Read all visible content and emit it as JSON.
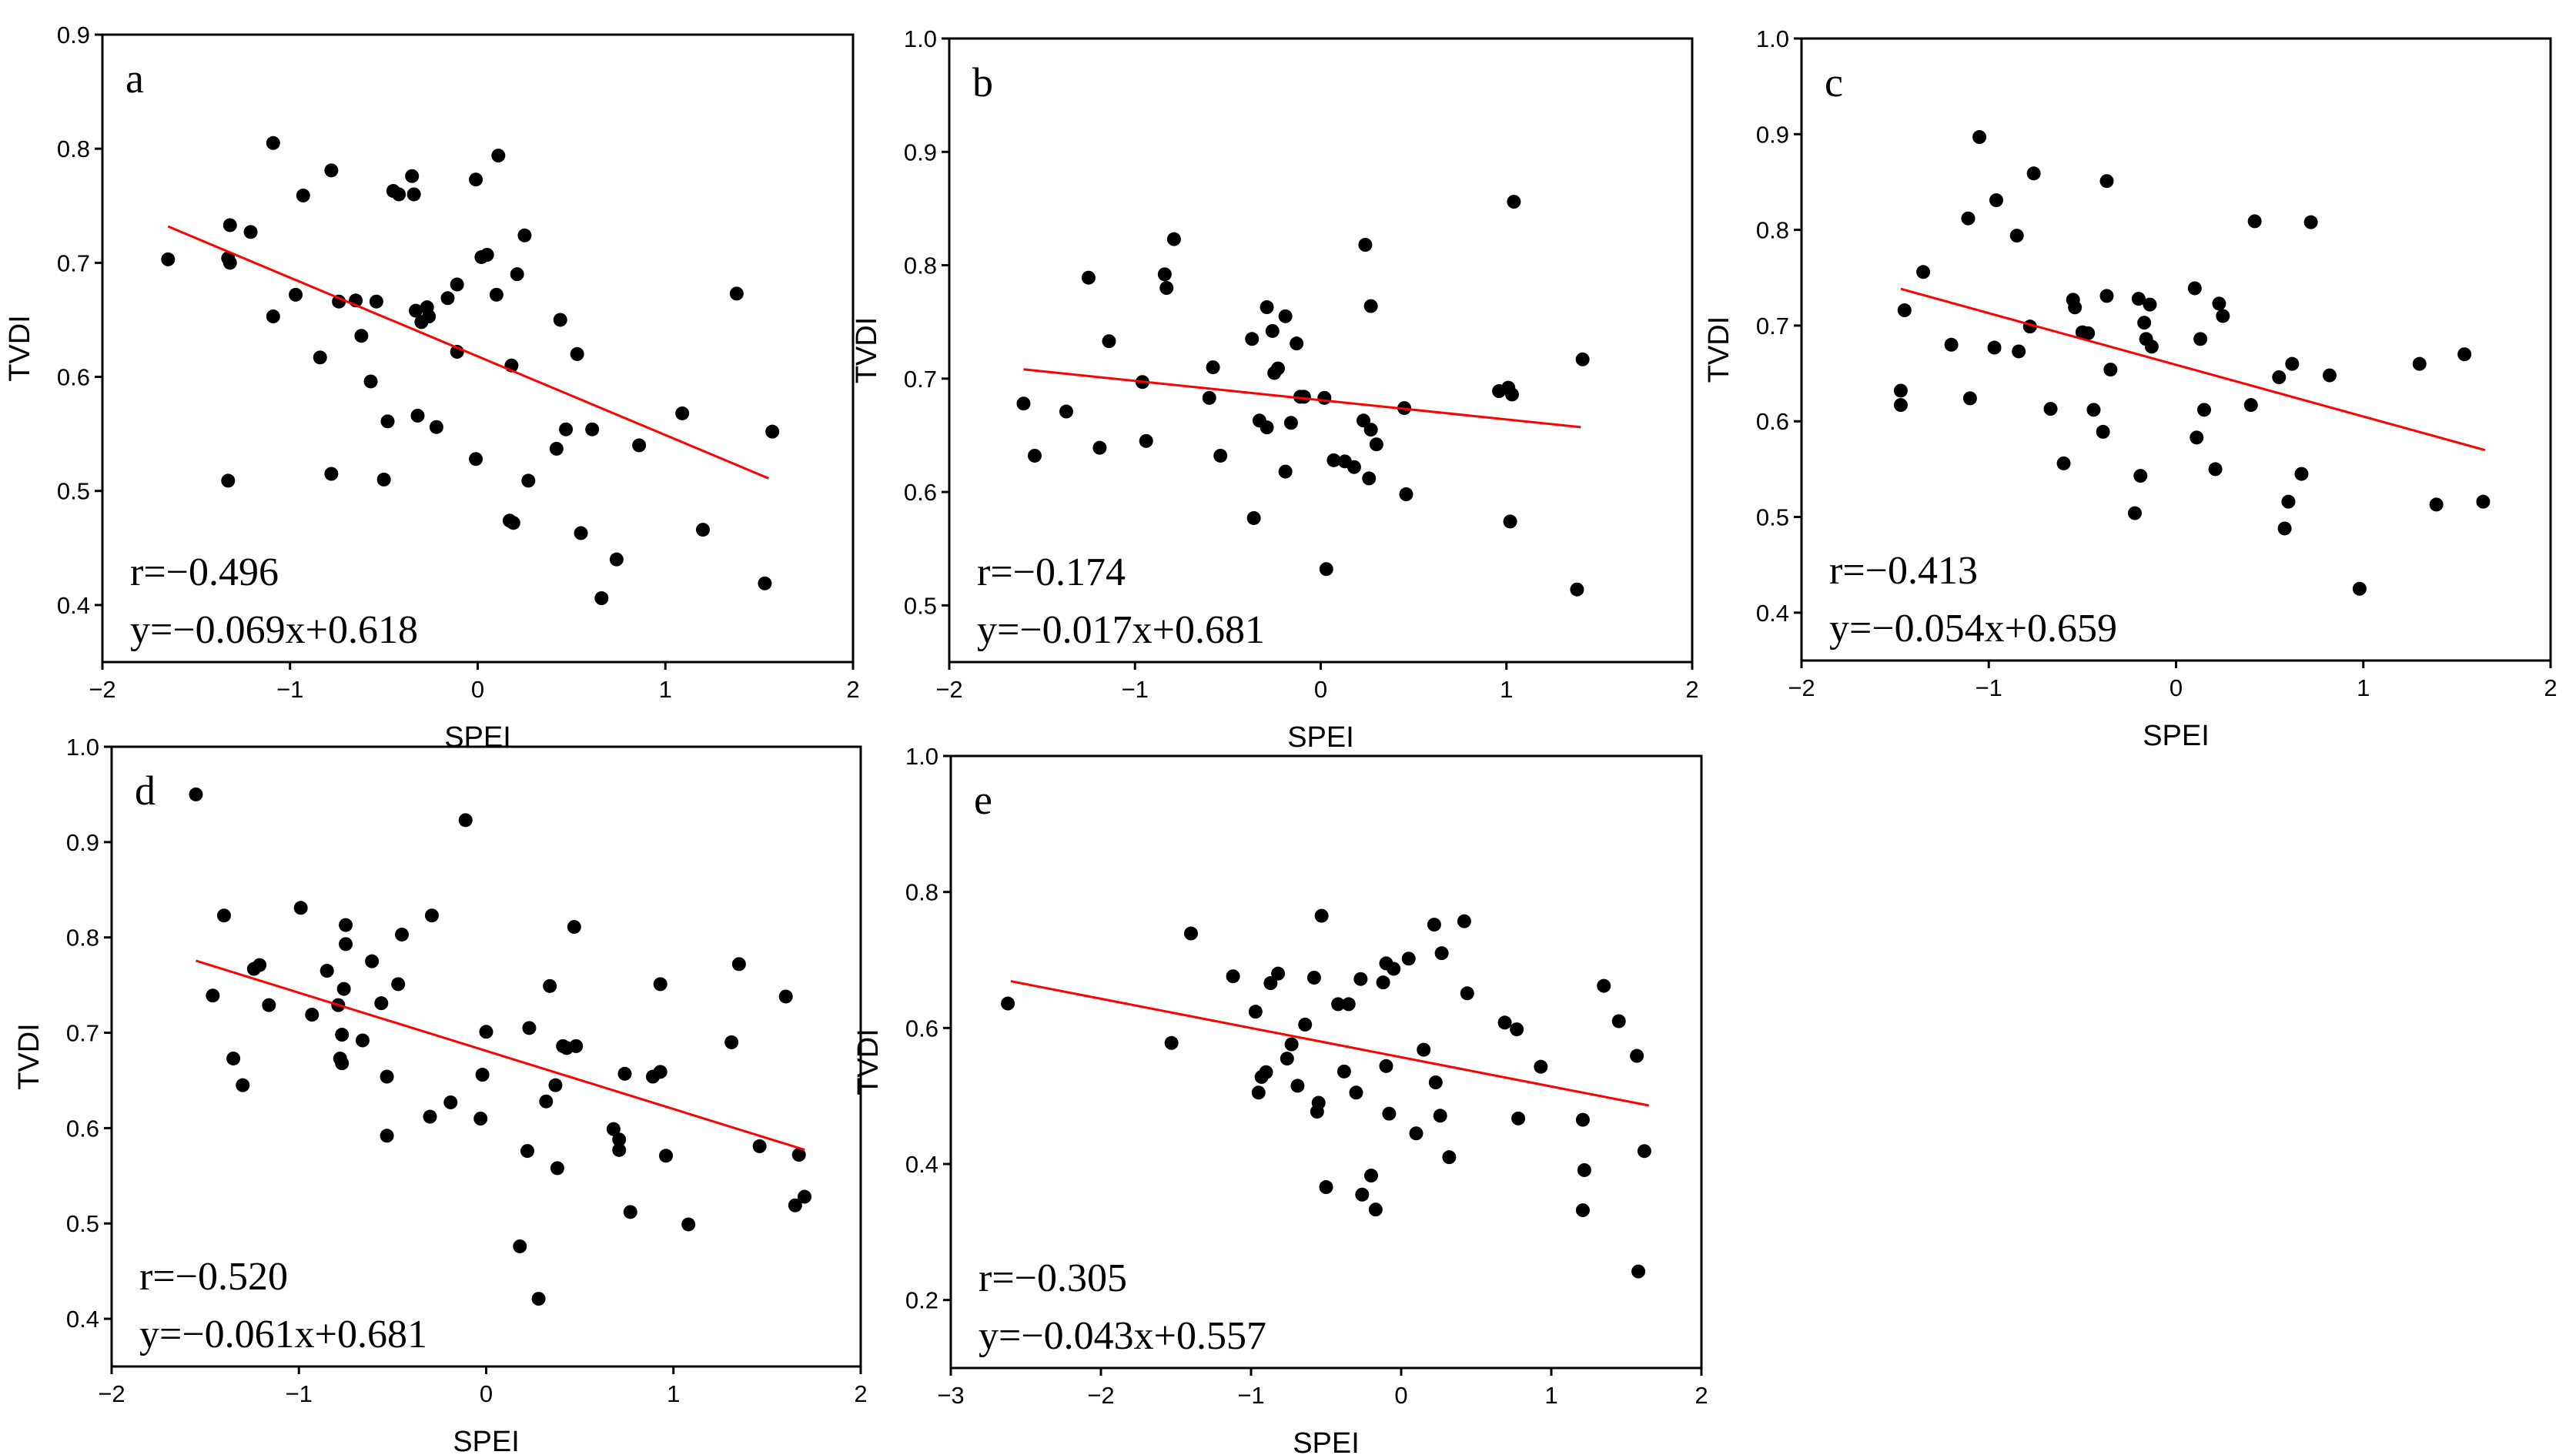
{
  "chart_data": [
    {
      "type": "scatter",
      "panel": "a",
      "xlabel": "SPEI",
      "ylabel": "TVDI",
      "xlim": [
        -2,
        2
      ],
      "ylim": [
        0.35,
        0.9
      ],
      "xticks": [
        -2,
        -1,
        0,
        1,
        2
      ],
      "xtick_labels": [
        "−2",
        "−1",
        "0",
        "1",
        "2"
      ],
      "yticks": [
        0.4,
        0.5,
        0.6,
        0.7,
        0.8,
        0.9
      ],
      "ytick_labels": [
        "0.4",
        "0.5",
        "0.6",
        "0.7",
        "0.8",
        "0.9"
      ],
      "r_text": "r=−0.496",
      "eq_text": "y=−0.069x+0.618",
      "fit": {
        "slope": -0.069,
        "intercept": 0.618,
        "x_range": [
          -1.65,
          1.55
        ]
      },
      "line_color": "#ff0000",
      "marker_color": "#000000",
      "points": [
        [
          -1.65,
          0.703
        ],
        [
          -1.32,
          0.733
        ],
        [
          -1.33,
          0.704
        ],
        [
          -1.32,
          0.7
        ],
        [
          -1.21,
          0.727
        ],
        [
          -1.09,
          0.805
        ],
        [
          -1.09,
          0.653
        ],
        [
          -0.97,
          0.672
        ],
        [
          -0.93,
          0.759
        ],
        [
          -0.84,
          0.617
        ],
        [
          -0.78,
          0.781
        ],
        [
          -0.78,
          0.515
        ],
        [
          -0.74,
          0.666
        ],
        [
          -0.65,
          0.667
        ],
        [
          -0.62,
          0.636
        ],
        [
          -0.57,
          0.596
        ],
        [
          -0.54,
          0.666
        ],
        [
          -0.5,
          0.51
        ],
        [
          -0.48,
          0.561
        ],
        [
          -0.45,
          0.763
        ],
        [
          -0.42,
          0.76
        ],
        [
          -0.35,
          0.776
        ],
        [
          -0.34,
          0.76
        ],
        [
          -0.33,
          0.658
        ],
        [
          -0.32,
          0.566
        ],
        [
          -0.3,
          0.648
        ],
        [
          -0.27,
          0.661
        ],
        [
          -0.26,
          0.653
        ],
        [
          -0.22,
          0.556
        ],
        [
          -0.16,
          0.669
        ],
        [
          -0.11,
          0.681
        ],
        [
          -0.11,
          0.622
        ],
        [
          -0.01,
          0.773
        ],
        [
          -0.01,
          0.528
        ],
        [
          0.02,
          0.705
        ],
        [
          0.05,
          0.707
        ],
        [
          0.1,
          0.672
        ],
        [
          0.11,
          0.794
        ],
        [
          0.17,
          0.474
        ],
        [
          0.18,
          0.61
        ],
        [
          0.19,
          0.472
        ],
        [
          0.21,
          0.69
        ],
        [
          0.25,
          0.724
        ],
        [
          0.27,
          0.509
        ],
        [
          0.42,
          0.537
        ],
        [
          0.44,
          0.65
        ],
        [
          0.47,
          0.554
        ],
        [
          0.53,
          0.62
        ],
        [
          0.55,
          0.463
        ],
        [
          0.61,
          0.554
        ],
        [
          0.66,
          0.406
        ],
        [
          0.74,
          0.44
        ],
        [
          0.86,
          0.54
        ],
        [
          1.09,
          0.568
        ],
        [
          1.2,
          0.466
        ],
        [
          1.38,
          0.673
        ],
        [
          1.53,
          0.419
        ],
        [
          1.57,
          0.552
        ],
        [
          -1.33,
          0.509
        ]
      ]
    },
    {
      "type": "scatter",
      "panel": "b",
      "xlabel": "SPEI",
      "ylabel": "TVDI",
      "xlim": [
        -2,
        2
      ],
      "ylim": [
        0.45,
        1.0
      ],
      "xticks": [
        -2,
        -1,
        0,
        1,
        2
      ],
      "xtick_labels": [
        "−2",
        "−1",
        "0",
        "1",
        "2"
      ],
      "yticks": [
        0.5,
        0.6,
        0.7,
        0.8,
        0.9,
        1.0
      ],
      "ytick_labels": [
        "0.5",
        "0.6",
        "0.7",
        "0.8",
        "0.9",
        "1.0"
      ],
      "r_text": "r=−0.174",
      "eq_text": "y=−0.017x+0.681",
      "fit": {
        "slope": -0.017,
        "intercept": 0.681,
        "x_range": [
          -1.6,
          1.4
        ]
      },
      "line_color": "#ff0000",
      "marker_color": "#000000",
      "points": [
        [
          -1.6,
          0.678
        ],
        [
          -1.54,
          0.632
        ],
        [
          -1.37,
          0.671
        ],
        [
          -1.25,
          0.789
        ],
        [
          -1.19,
          0.639
        ],
        [
          -1.14,
          0.733
        ],
        [
          -0.96,
          0.697
        ],
        [
          -0.94,
          0.645
        ],
        [
          -0.84,
          0.792
        ],
        [
          -0.83,
          0.78
        ],
        [
          -0.79,
          0.823
        ],
        [
          -0.6,
          0.683
        ],
        [
          -0.58,
          0.71
        ],
        [
          -0.54,
          0.632
        ],
        [
          -0.37,
          0.735
        ],
        [
          -0.36,
          0.577
        ],
        [
          -0.33,
          0.663
        ],
        [
          -0.29,
          0.763
        ],
        [
          -0.29,
          0.657
        ],
        [
          -0.26,
          0.742
        ],
        [
          -0.25,
          0.705
        ],
        [
          -0.23,
          0.709
        ],
        [
          -0.19,
          0.755
        ],
        [
          -0.19,
          0.618
        ],
        [
          -0.16,
          0.661
        ],
        [
          -0.13,
          0.731
        ],
        [
          -0.11,
          0.684
        ],
        [
          -0.09,
          0.684
        ],
        [
          0.02,
          0.683
        ],
        [
          0.03,
          0.532
        ],
        [
          0.07,
          0.628
        ],
        [
          0.13,
          0.627
        ],
        [
          0.18,
          0.622
        ],
        [
          0.23,
          0.663
        ],
        [
          0.24,
          0.818
        ],
        [
          0.26,
          0.612
        ],
        [
          0.27,
          0.655
        ],
        [
          0.27,
          0.764
        ],
        [
          0.3,
          0.642
        ],
        [
          0.45,
          0.674
        ],
        [
          0.46,
          0.598
        ],
        [
          0.96,
          0.689
        ],
        [
          1.01,
          0.692
        ],
        [
          1.02,
          0.574
        ],
        [
          1.03,
          0.686
        ],
        [
          1.04,
          0.856
        ],
        [
          1.38,
          0.514
        ],
        [
          1.41,
          0.717
        ]
      ]
    },
    {
      "type": "scatter",
      "panel": "c",
      "xlabel": "SPEI",
      "ylabel": "TVDI",
      "xlim": [
        -2,
        2
      ],
      "ylim": [
        0.35,
        1.0
      ],
      "xticks": [
        -2,
        -1,
        0,
        1,
        2
      ],
      "xtick_labels": [
        "−2",
        "−1",
        "0",
        "1",
        "2"
      ],
      "yticks": [
        0.4,
        0.5,
        0.6,
        0.7,
        0.8,
        0.9,
        1.0
      ],
      "ytick_labels": [
        "0.4",
        "0.5",
        "0.6",
        "0.7",
        "0.8",
        "0.9",
        "1.0"
      ],
      "r_text": "r=−0.413",
      "eq_text": "y=−0.054x+0.659",
      "fit": {
        "slope": -0.054,
        "intercept": 0.659,
        "x_range": [
          -1.47,
          1.65
        ]
      },
      "line_color": "#ff0000",
      "marker_color": "#000000",
      "points": [
        [
          -1.47,
          0.632
        ],
        [
          -1.47,
          0.617
        ],
        [
          -1.45,
          0.716
        ],
        [
          -1.35,
          0.756
        ],
        [
          -1.2,
          0.68
        ],
        [
          -1.11,
          0.812
        ],
        [
          -1.1,
          0.624
        ],
        [
          -1.05,
          0.897
        ],
        [
          -0.97,
          0.677
        ],
        [
          -0.96,
          0.831
        ],
        [
          -0.85,
          0.794
        ],
        [
          -0.84,
          0.673
        ],
        [
          -0.78,
          0.699
        ],
        [
          -0.76,
          0.859
        ],
        [
          -0.67,
          0.613
        ],
        [
          -0.6,
          0.556
        ],
        [
          -0.55,
          0.727
        ],
        [
          -0.54,
          0.719
        ],
        [
          -0.5,
          0.693
        ],
        [
          -0.47,
          0.692
        ],
        [
          -0.44,
          0.612
        ],
        [
          -0.39,
          0.589
        ],
        [
          -0.37,
          0.731
        ],
        [
          -0.37,
          0.851
        ],
        [
          -0.35,
          0.654
        ],
        [
          -0.22,
          0.504
        ],
        [
          -0.2,
          0.728
        ],
        [
          -0.19,
          0.543
        ],
        [
          -0.17,
          0.703
        ],
        [
          -0.16,
          0.686
        ],
        [
          -0.14,
          0.722
        ],
        [
          -0.13,
          0.678
        ],
        [
          0.1,
          0.739
        ],
        [
          0.11,
          0.583
        ],
        [
          0.13,
          0.686
        ],
        [
          0.15,
          0.612
        ],
        [
          0.21,
          0.55
        ],
        [
          0.23,
          0.723
        ],
        [
          0.25,
          0.71
        ],
        [
          0.4,
          0.617
        ],
        [
          0.42,
          0.809
        ],
        [
          0.55,
          0.646
        ],
        [
          0.58,
          0.488
        ],
        [
          0.6,
          0.516
        ],
        [
          0.62,
          0.66
        ],
        [
          0.67,
          0.545
        ],
        [
          0.72,
          0.808
        ],
        [
          0.82,
          0.648
        ],
        [
          0.98,
          0.425
        ],
        [
          1.3,
          0.66
        ],
        [
          1.39,
          0.513
        ],
        [
          1.54,
          0.67
        ],
        [
          1.64,
          0.516
        ]
      ]
    },
    {
      "type": "scatter",
      "panel": "d",
      "xlabel": "SPEI",
      "ylabel": "TVDI",
      "xlim": [
        -2,
        2
      ],
      "ylim": [
        0.35,
        1.0
      ],
      "xticks": [
        -2,
        -1,
        0,
        1,
        2
      ],
      "xtick_labels": [
        "−2",
        "−1",
        "0",
        "1",
        "2"
      ],
      "yticks": [
        0.4,
        0.5,
        0.6,
        0.7,
        0.8,
        0.9,
        1.0
      ],
      "ytick_labels": [
        "0.4",
        "0.5",
        "0.6",
        "0.7",
        "0.8",
        "0.9",
        "1.0"
      ],
      "r_text": "r=−0.520",
      "eq_text": "y=−0.061x+0.681",
      "fit": {
        "slope": -0.061,
        "intercept": 0.681,
        "x_range": [
          -1.55,
          1.7
        ]
      },
      "line_color": "#ff0000",
      "marker_color": "#000000",
      "points": [
        [
          -1.55,
          0.95
        ],
        [
          -1.46,
          0.739
        ],
        [
          -1.4,
          0.823
        ],
        [
          -1.35,
          0.673
        ],
        [
          -1.3,
          0.645
        ],
        [
          -1.24,
          0.767
        ],
        [
          -1.21,
          0.771
        ],
        [
          -1.16,
          0.729
        ],
        [
          -0.99,
          0.831
        ],
        [
          -0.93,
          0.719
        ],
        [
          -0.85,
          0.765
        ],
        [
          -0.79,
          0.729
        ],
        [
          -0.78,
          0.673
        ],
        [
          -0.77,
          0.668
        ],
        [
          -0.77,
          0.698
        ],
        [
          -0.76,
          0.746
        ],
        [
          -0.75,
          0.793
        ],
        [
          -0.75,
          0.813
        ],
        [
          -0.66,
          0.692
        ],
        [
          -0.61,
          0.775
        ],
        [
          -0.56,
          0.731
        ],
        [
          -0.53,
          0.654
        ],
        [
          -0.53,
          0.592
        ],
        [
          -0.47,
          0.751
        ],
        [
          -0.45,
          0.803
        ],
        [
          -0.29,
          0.823
        ],
        [
          -0.3,
          0.612
        ],
        [
          -0.19,
          0.627
        ],
        [
          -0.11,
          0.923
        ],
        [
          -0.03,
          0.61
        ],
        [
          -0.02,
          0.656
        ],
        [
          0.0,
          0.701
        ],
        [
          0.18,
          0.476
        ],
        [
          0.22,
          0.576
        ],
        [
          0.23,
          0.705
        ],
        [
          0.28,
          0.421
        ],
        [
          0.32,
          0.628
        ],
        [
          0.34,
          0.749
        ],
        [
          0.37,
          0.645
        ],
        [
          0.38,
          0.558
        ],
        [
          0.41,
          0.686
        ],
        [
          0.43,
          0.684
        ],
        [
          0.47,
          0.811
        ],
        [
          0.48,
          0.686
        ],
        [
          0.68,
          0.599
        ],
        [
          0.71,
          0.577
        ],
        [
          0.71,
          0.588
        ],
        [
          0.74,
          0.657
        ],
        [
          0.77,
          0.512
        ],
        [
          0.89,
          0.654
        ],
        [
          0.93,
          0.659
        ],
        [
          0.93,
          0.751
        ],
        [
          0.96,
          0.571
        ],
        [
          1.08,
          0.499
        ],
        [
          1.31,
          0.69
        ],
        [
          1.35,
          0.772
        ],
        [
          1.46,
          0.581
        ],
        [
          1.6,
          0.738
        ],
        [
          1.65,
          0.519
        ],
        [
          1.67,
          0.572
        ],
        [
          1.7,
          0.528
        ]
      ]
    },
    {
      "type": "scatter",
      "panel": "e",
      "xlabel": "SPEI",
      "ylabel": "TVDI",
      "xlim": [
        -3,
        2
      ],
      "ylim": [
        0.1,
        1.0
      ],
      "xticks": [
        -3,
        -2,
        -1,
        0,
        1,
        2
      ],
      "xtick_labels": [
        "−3",
        "−2",
        "−1",
        "0",
        "1",
        "2"
      ],
      "yticks": [
        0.2,
        0.4,
        0.6,
        0.8,
        1.0
      ],
      "ytick_labels": [
        "0.2",
        "0.4",
        "0.6",
        "0.8",
        "1.0"
      ],
      "r_text": "r=−0.305",
      "eq_text": "y=−0.043x+0.557",
      "fit": {
        "slope": -0.043,
        "intercept": 0.557,
        "x_range": [
          -2.6,
          1.65
        ]
      },
      "line_color": "#ff0000",
      "marker_color": "#000000",
      "points": [
        [
          -2.62,
          0.636
        ],
        [
          -1.53,
          0.578
        ],
        [
          -1.4,
          0.739
        ],
        [
          -1.12,
          0.676
        ],
        [
          -0.97,
          0.624
        ],
        [
          -0.95,
          0.505
        ],
        [
          -0.93,
          0.528
        ],
        [
          -0.9,
          0.535
        ],
        [
          -0.87,
          0.666
        ],
        [
          -0.82,
          0.68
        ],
        [
          -0.76,
          0.555
        ],
        [
          -0.73,
          0.576
        ],
        [
          -0.69,
          0.515
        ],
        [
          -0.64,
          0.605
        ],
        [
          -0.58,
          0.674
        ],
        [
          -0.56,
          0.477
        ],
        [
          -0.55,
          0.49
        ],
        [
          -0.53,
          0.765
        ],
        [
          -0.5,
          0.366
        ],
        [
          -0.42,
          0.635
        ],
        [
          -0.38,
          0.536
        ],
        [
          -0.35,
          0.635
        ],
        [
          -0.3,
          0.505
        ],
        [
          -0.27,
          0.672
        ],
        [
          -0.26,
          0.355
        ],
        [
          -0.2,
          0.383
        ],
        [
          -0.17,
          0.333
        ],
        [
          -0.12,
          0.667
        ],
        [
          -0.1,
          0.695
        ],
        [
          -0.1,
          0.544
        ],
        [
          -0.08,
          0.474
        ],
        [
          -0.05,
          0.687
        ],
        [
          0.05,
          0.702
        ],
        [
          0.1,
          0.445
        ],
        [
          0.15,
          0.568
        ],
        [
          0.22,
          0.752
        ],
        [
          0.23,
          0.52
        ],
        [
          0.26,
          0.471
        ],
        [
          0.27,
          0.71
        ],
        [
          0.32,
          0.41
        ],
        [
          0.42,
          0.757
        ],
        [
          0.44,
          0.651
        ],
        [
          0.69,
          0.608
        ],
        [
          0.77,
          0.598
        ],
        [
          0.78,
          0.467
        ],
        [
          0.93,
          0.543
        ],
        [
          1.21,
          0.465
        ],
        [
          1.21,
          0.332
        ],
        [
          1.22,
          0.391
        ],
        [
          1.35,
          0.662
        ],
        [
          1.45,
          0.61
        ],
        [
          1.57,
          0.559
        ],
        [
          1.58,
          0.242
        ],
        [
          1.62,
          0.419
        ]
      ]
    }
  ]
}
